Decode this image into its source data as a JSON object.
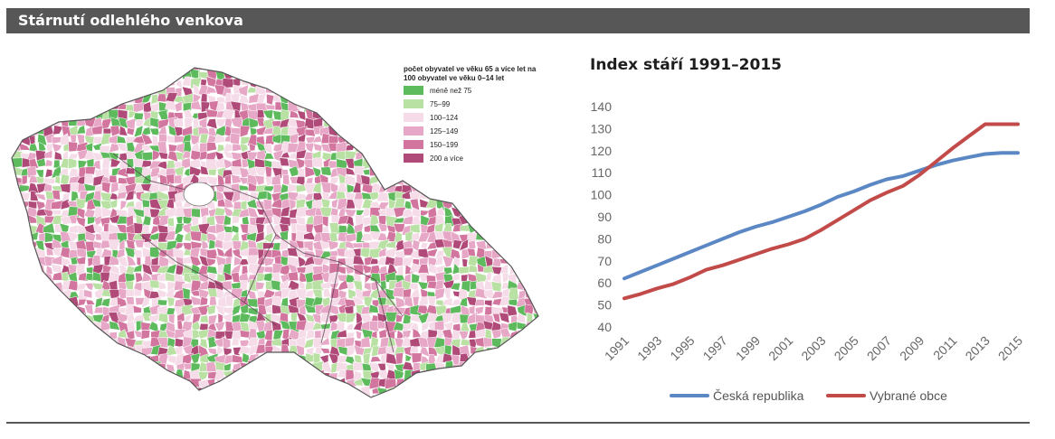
{
  "header": {
    "title": "Stárnutí odlehlého venkova"
  },
  "map": {
    "legend_title": "počet obyvatel ve věku 65 a více let na 100 obyvatel ve věku 0–14 let",
    "legend_items": [
      {
        "label": "méně než 75",
        "color": "#5dbb5d"
      },
      {
        "label": "75–99",
        "color": "#b9e1a4"
      },
      {
        "label": "100–124",
        "color": "#f5dce8"
      },
      {
        "label": "125–149",
        "color": "#e7a7c6"
      },
      {
        "label": "150–199",
        "color": "#d2769f"
      },
      {
        "label": "200 a více",
        "color": "#b04a79"
      }
    ]
  },
  "chart_data": {
    "type": "line",
    "title": "Index stáří 1991–2015",
    "x": [
      1991,
      1992,
      1993,
      1994,
      1995,
      1996,
      1997,
      1998,
      1999,
      2000,
      2001,
      2002,
      2003,
      2004,
      2005,
      2006,
      2007,
      2008,
      2009,
      2010,
      2011,
      2012,
      2013,
      2014,
      2015
    ],
    "x_tick_labels": [
      "1991",
      "1993",
      "1995",
      "1997",
      "1999",
      "2001",
      "2003",
      "2005",
      "2007",
      "2009",
      "2011",
      "2013",
      "2015"
    ],
    "ylim": [
      40,
      140
    ],
    "y_ticks": [
      40,
      50,
      60,
      70,
      80,
      90,
      100,
      110,
      120,
      130,
      140
    ],
    "grid": false,
    "legend_position": "bottom",
    "series": [
      {
        "name": "Česká republika",
        "color": "#5b88c4",
        "values": [
          62,
          65,
          68,
          71,
          74,
          77,
          80,
          83,
          85.5,
          87.5,
          90,
          92.5,
          95.5,
          99,
          101.5,
          104.5,
          107,
          108.5,
          111,
          113.5,
          115.5,
          117,
          118.5,
          119,
          119
        ]
      },
      {
        "name": "Vybrané obce",
        "color": "#c24b4a",
        "values": [
          53,
          55,
          57.5,
          59.5,
          62.5,
          66,
          68,
          70.5,
          73,
          75.5,
          77.5,
          80,
          84,
          88.5,
          93,
          97.5,
          101,
          104,
          109,
          115,
          121,
          126.5,
          132,
          132,
          132
        ]
      }
    ]
  }
}
